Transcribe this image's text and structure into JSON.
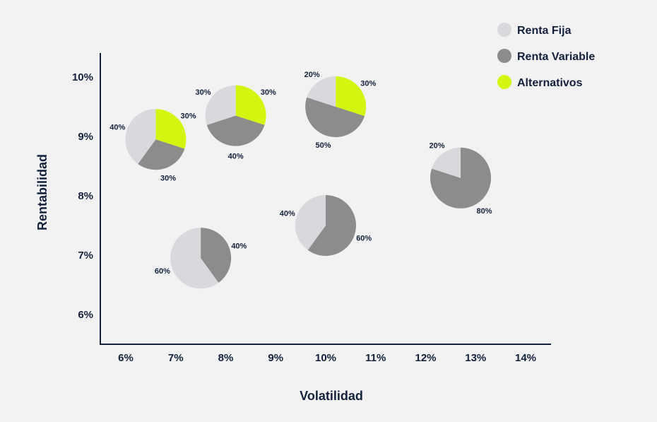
{
  "chart_data": {
    "type": "scatter",
    "title": "",
    "xlabel": "Volatilidad",
    "ylabel": "Rentabilidad",
    "x_ticks": [
      "6%",
      "7%",
      "8%",
      "9%",
      "10%",
      "11%",
      "12%",
      "13%",
      "14%"
    ],
    "y_ticks": [
      "6%",
      "7%",
      "8%",
      "9%",
      "10%"
    ],
    "xlim": [
      5.5,
      14.5
    ],
    "ylim": [
      5.5,
      10.4
    ],
    "legend_position": "top-right",
    "legend": [
      {
        "name": "Renta Fija",
        "color": "#d9d8dc"
      },
      {
        "name": "Renta Variable",
        "color": "#8c8c8c"
      },
      {
        "name": "Alternativos",
        "color": "#d4f50f"
      }
    ],
    "points": [
      {
        "x": 7.5,
        "y": 6.95,
        "slices": [
          {
            "series": "Renta Fija",
            "value": 60,
            "label": "60%"
          },
          {
            "series": "Renta Variable",
            "value": 40,
            "label": "40%"
          }
        ]
      },
      {
        "x": 6.6,
        "y": 8.95,
        "slices": [
          {
            "series": "Renta Fija",
            "value": 40,
            "label": "40%"
          },
          {
            "series": "Renta Variable",
            "value": 30,
            "label": "30%"
          },
          {
            "series": "Alternativos",
            "value": 30,
            "label": "30%"
          }
        ]
      },
      {
        "x": 8.2,
        "y": 9.35,
        "slices": [
          {
            "series": "Renta Fija",
            "value": 30,
            "label": "30%"
          },
          {
            "series": "Renta Variable",
            "value": 40,
            "label": "40%"
          },
          {
            "series": "Alternativos",
            "value": 30,
            "label": "30%"
          }
        ]
      },
      {
        "x": 10.2,
        "y": 9.5,
        "slices": [
          {
            "series": "Renta Fija",
            "value": 20,
            "label": "20%"
          },
          {
            "series": "Renta Variable",
            "value": 50,
            "label": "50%"
          },
          {
            "series": "Alternativos",
            "value": 30,
            "label": "30%"
          }
        ]
      },
      {
        "x": 10.0,
        "y": 7.5,
        "slices": [
          {
            "series": "Renta Fija",
            "value": 40,
            "label": "40%"
          },
          {
            "series": "Renta Variable",
            "value": 60,
            "label": "60%"
          }
        ]
      },
      {
        "x": 12.7,
        "y": 8.3,
        "slices": [
          {
            "series": "Renta Fija",
            "value": 20,
            "label": "20%"
          },
          {
            "series": "Renta Variable",
            "value": 80,
            "label": "80%"
          }
        ]
      }
    ]
  }
}
